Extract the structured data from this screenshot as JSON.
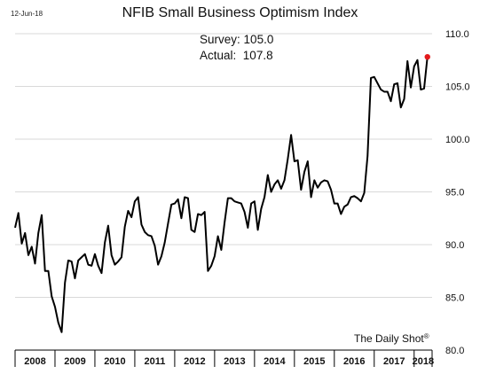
{
  "date_stamp": "12-Jun-18",
  "source": "The Daily Shot",
  "source_mark": "®",
  "annotations": {
    "survey_label": "Survey:",
    "survey_value": "105.0",
    "actual_label": "Actual:",
    "actual_value": "107.8"
  },
  "colors": {
    "line": "#000000",
    "last_point": "#e41a1c",
    "grid": "#d9d9d9",
    "axis": "#000000"
  },
  "chart_data": {
    "type": "line",
    "title": "NFIB Small Business Optimism Index",
    "ylim": [
      80,
      110
    ],
    "yticks": [
      "80.0",
      "85.0",
      "90.0",
      "95.0",
      "100.0",
      "105.0",
      "110.0"
    ],
    "xlim": [
      2008.0,
      2018.45
    ],
    "xticks": [
      "2008",
      "2009",
      "2010",
      "2011",
      "2012",
      "2013",
      "2014",
      "2015",
      "2016",
      "2017",
      "2018"
    ],
    "grid": "horizontal",
    "y_axis_side": "right",
    "series": [
      {
        "x": [
          2008.0,
          2008.083,
          2008.167,
          2008.25,
          2008.333,
          2008.417,
          2008.5,
          2008.583,
          2008.667,
          2008.75,
          2008.833,
          2008.917,
          2009.0,
          2009.083,
          2009.167,
          2009.25,
          2009.333,
          2009.417,
          2009.5,
          2009.583,
          2009.667,
          2009.75,
          2009.833,
          2009.917,
          2010.0,
          2010.083,
          2010.167,
          2010.25,
          2010.333,
          2010.417,
          2010.5,
          2010.583,
          2010.667,
          2010.75,
          2010.833,
          2010.917,
          2011.0,
          2011.083,
          2011.167,
          2011.25,
          2011.333,
          2011.417,
          2011.5,
          2011.583,
          2011.667,
          2011.75,
          2011.833,
          2011.917,
          2012.0,
          2012.083,
          2012.167,
          2012.25,
          2012.333,
          2012.417,
          2012.5,
          2012.583,
          2012.667,
          2012.75,
          2012.833,
          2012.917,
          2013.0,
          2013.083,
          2013.167,
          2013.25,
          2013.333,
          2013.417,
          2013.5,
          2013.583,
          2013.667,
          2013.75,
          2013.833,
          2013.917,
          2014.0,
          2014.083,
          2014.167,
          2014.25,
          2014.333,
          2014.417,
          2014.5,
          2014.583,
          2014.667,
          2014.75,
          2014.833,
          2014.917,
          2015.0,
          2015.083,
          2015.167,
          2015.25,
          2015.333,
          2015.417,
          2015.5,
          2015.583,
          2015.667,
          2015.75,
          2015.833,
          2015.917,
          2016.0,
          2016.083,
          2016.167,
          2016.25,
          2016.333,
          2016.417,
          2016.5,
          2016.583,
          2016.667,
          2016.75,
          2016.833,
          2016.917,
          2017.0,
          2017.083,
          2017.167,
          2017.25,
          2017.333,
          2017.417,
          2017.5,
          2017.583,
          2017.667,
          2017.75,
          2017.833,
          2017.917,
          2018.0,
          2018.083,
          2018.167,
          2018.25,
          2018.333
        ],
        "values": [
          91.6,
          93.0,
          90.1,
          91.1,
          89.0,
          89.8,
          88.2,
          91.1,
          92.8,
          87.5,
          87.5,
          85.1,
          84.1,
          82.6,
          81.7,
          86.4,
          88.5,
          88.4,
          86.8,
          88.5,
          88.8,
          89.1,
          88.1,
          88.0,
          89.1,
          88.0,
          87.3,
          90.2,
          91.8,
          89.0,
          88.1,
          88.4,
          88.8,
          91.7,
          93.2,
          92.6,
          94.1,
          94.5,
          91.9,
          91.2,
          90.9,
          90.8,
          89.9,
          88.1,
          88.9,
          90.2,
          92.0,
          93.8,
          93.9,
          94.3,
          92.5,
          94.5,
          94.4,
          91.4,
          91.2,
          92.9,
          92.8,
          93.1,
          87.5,
          88.0,
          88.9,
          90.8,
          89.5,
          92.1,
          94.4,
          94.4,
          94.1,
          94.0,
          93.9,
          93.1,
          91.6,
          93.9,
          94.1,
          91.4,
          93.4,
          94.5,
          96.6,
          95.0,
          95.7,
          96.1,
          95.3,
          96.1,
          98.1,
          100.4,
          97.9,
          98.0,
          95.2,
          96.9,
          97.9,
          94.5,
          96.1,
          95.4,
          95.9,
          96.1,
          96.0,
          95.2,
          93.9,
          93.9,
          92.9,
          93.6,
          93.8,
          94.5,
          94.6,
          94.4,
          94.1,
          94.9,
          98.4,
          105.8,
          105.9,
          105.3,
          104.7,
          104.5,
          104.5,
          103.6,
          105.2,
          105.3,
          103.0,
          103.8,
          107.4,
          104.9,
          106.9,
          107.5,
          104.7,
          104.8,
          107.8
        ]
      }
    ],
    "highlight_last_point": true
  }
}
